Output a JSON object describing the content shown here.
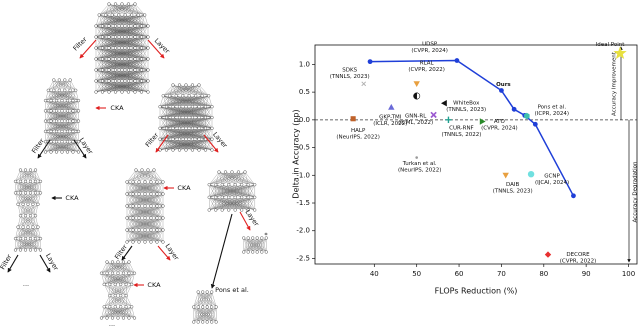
{
  "diagram": {
    "labels": [
      "Filter",
      "Layer",
      "CKA",
      "Filter",
      "Layer",
      "Filter",
      "Layer",
      "CKA",
      "CKA",
      "Filter",
      "Layer",
      "Filter",
      "Layer",
      "Layer",
      "CKA",
      "*",
      "Pons et al.",
      "...",
      "..."
    ]
  },
  "chart_data": {
    "type": "scatter",
    "xlabel": "FLOPs Reduction (%)",
    "ylabel": "Delta in Accuracy (pp)",
    "xlim": [
      26,
      102
    ],
    "ylim": [
      -2.6,
      1.35
    ],
    "xticks": [
      40,
      50,
      60,
      70,
      80,
      90,
      100
    ],
    "yticks": [
      {
        "value": 1,
        "label": "1.0"
      },
      0.5,
      {
        "value": 0,
        "label": "0.0"
      },
      -0.5,
      {
        "value": -1,
        "label": "-1.0"
      },
      -1.5,
      {
        "value": -2,
        "label": "-2.0"
      },
      -2.5
    ],
    "hline": 0,
    "line": {
      "color": "#1f3fd8",
      "x": [
        39,
        59.5,
        70,
        73,
        75.5,
        78,
        87
      ],
      "y": [
        1.05,
        1.07,
        0.53,
        0.19,
        0.08,
        -0.08,
        -1.37
      ],
      "label": "Ours"
    },
    "points": [
      {
        "name": "UDSP",
        "venue": "(CVPR, 2024)",
        "x": 50,
        "y": 0.65,
        "color": "#e8a040",
        "marker": "tri-down"
      },
      {
        "name": "RLAL",
        "venue": "(CVPR, 2022)",
        "x": 50,
        "y": 0.43,
        "color": "#111111",
        "marker": "half-circle"
      },
      {
        "name": "SDKS",
        "venue": "(TNNLS, 2023)",
        "x": 37.5,
        "y": 0.65,
        "color": "#b0b0b0",
        "marker": "x"
      },
      {
        "name": "GKP-TMI",
        "venue": "(ICLR, 2022)",
        "x": 44,
        "y": 0.23,
        "color": "#6a6ad8",
        "marker": "tri-up"
      },
      {
        "name": "GNN-RL",
        "venue": "(ICML, 2022)",
        "x": 54,
        "y": 0.09,
        "color": "#9b59d0",
        "marker": "X"
      },
      {
        "name": "WhiteBox",
        "venue": "(TNNLS, 2023)",
        "x": 56.5,
        "y": 0.3,
        "color": "#111111",
        "marker": "tri-left"
      },
      {
        "name": "HALP",
        "venue": "(NeurIPS, 2022)",
        "x": 35,
        "y": 0.02,
        "color": "#c0622a",
        "marker": "square"
      },
      {
        "name": "CUR-RNF",
        "venue": "(TNNLS, 2022)",
        "x": 57.5,
        "y": 0.0,
        "color": "#20a090",
        "marker": "plus"
      },
      {
        "name": "ATO",
        "venue": "(CVPR, 2024)",
        "x": 65.5,
        "y": -0.03,
        "color": "#2a8a2a",
        "marker": "tri-right"
      },
      {
        "name": "Pons et al.",
        "venue": "(ICPR, 2024)",
        "x": 76,
        "y": 0.07,
        "color": "#40c0b0",
        "marker": "hexagon"
      },
      {
        "name": "Turkan et al.",
        "venue": "(NeurIPS, 2022)",
        "x": 50,
        "y": -0.68,
        "color": "#999999",
        "marker": "dot"
      },
      {
        "name": "DAIB",
        "venue": "(TNNLS, 2023)",
        "x": 71,
        "y": -1.0,
        "color": "#e8a040",
        "marker": "tri-down"
      },
      {
        "name": "GCNP",
        "venue": "(IJCAI, 2024)",
        "x": 77,
        "y": -0.98,
        "color": "#70e0e0",
        "marker": "circle"
      },
      {
        "name": "DECORE",
        "venue": "(CVPR, 2022)",
        "x": 81,
        "y": -2.43,
        "color": "#e83030",
        "marker": "diamond"
      },
      {
        "name": "Ideal Point",
        "x": 98,
        "y": 1.2,
        "color": "#e8e040",
        "marker": "star"
      }
    ],
    "annotations": [
      "Accuracy Improvement",
      "Accuracy Degradation"
    ]
  }
}
